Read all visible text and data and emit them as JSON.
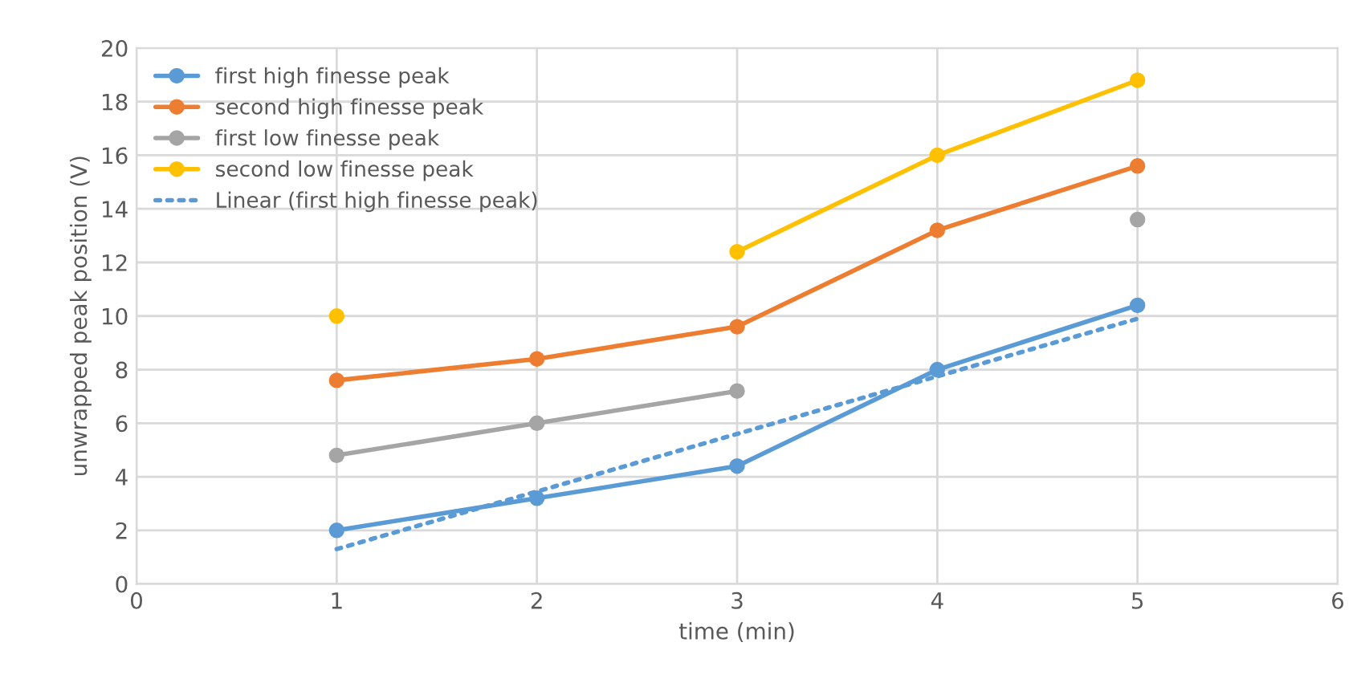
{
  "chart_data": {
    "type": "line",
    "xlabel": "time (min)",
    "ylabel": "unwrapped peak position (V)",
    "x": [
      1,
      2,
      3,
      4,
      5
    ],
    "xlim": [
      0,
      6
    ],
    "xticks": [
      0,
      1,
      2,
      3,
      4,
      5,
      6
    ],
    "ylim": [
      0,
      20
    ],
    "yticks": [
      0,
      2,
      4,
      6,
      8,
      10,
      12,
      14,
      16,
      18,
      20
    ],
    "grid": true,
    "legend": "top left",
    "marker": "circle",
    "line_style": "solid",
    "series": [
      {
        "name": "first high finesse peak",
        "color": "#5b9bd5",
        "values": [
          2.0,
          3.2,
          4.4,
          8.0,
          10.4
        ]
      },
      {
        "name": "second high finesse peak",
        "color": "#ed7d31",
        "values": [
          7.6,
          8.4,
          9.6,
          13.2,
          15.6
        ]
      },
      {
        "name": "first low finesse peak",
        "color": "#a5a5a5",
        "values": [
          4.8,
          6.0,
          7.2,
          null,
          13.6
        ]
      },
      {
        "name": "second low finesse peak",
        "color": "#ffc000",
        "values": [
          10.0,
          null,
          12.4,
          16.0,
          18.8
        ]
      },
      {
        "name": "Linear (first high finesse peak)",
        "color": "#5b9bd5",
        "x": [
          1,
          5
        ],
        "values": [
          1.3,
          9.9
        ],
        "marker": "none",
        "line_style": "dotted"
      }
    ]
  }
}
